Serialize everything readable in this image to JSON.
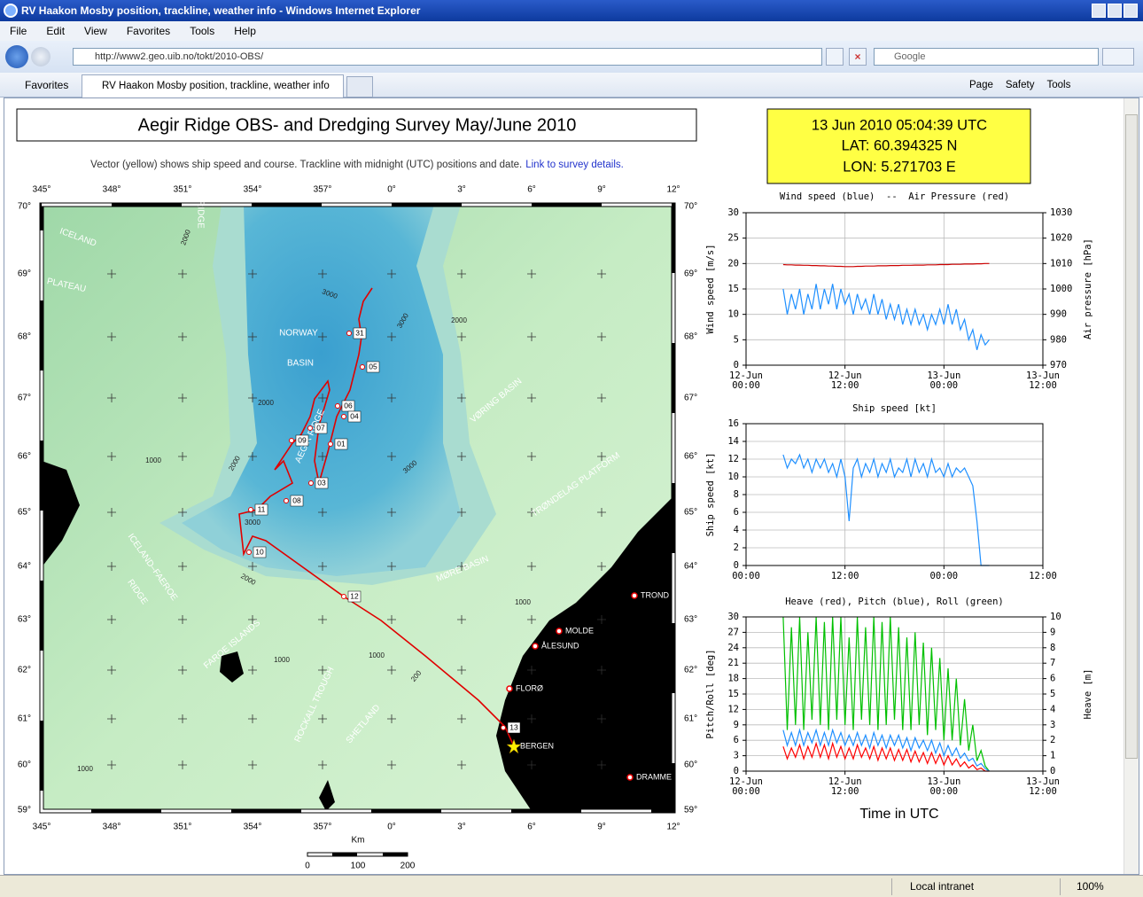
{
  "browser": {
    "window_title": "RV Haakon Mosby position, trackline, weather info - Windows Internet Explorer",
    "menu": [
      "File",
      "Edit",
      "View",
      "Favorites",
      "Tools",
      "Help"
    ],
    "address": "http://www2.geo.uib.no/tokt/2010-OBS/",
    "search": "Google",
    "favorites": "Favorites",
    "tab": "RV Haakon Mosby position, trackline, weather info",
    "commands": [
      "Page",
      "Safety",
      "Tools"
    ],
    "status_zone": "Local intranet",
    "zoom": "100%"
  },
  "page": {
    "title": "Aegir Ridge OBS- and Dredging Survey May/June 2010",
    "caption": "Vector (yellow) shows ship speed and course. Trackline with midnight (UTC) positions and date.",
    "link": "Link to survey details.",
    "position": {
      "time": "13 Jun 2010 05:04:39 UTC",
      "lat": "LAT: 60.394325 N",
      "lon": "LON: 5.271703 E"
    },
    "time_axis_caption": "Time in UTC"
  },
  "map": {
    "lon_labels": [
      "345°",
      "348°",
      "351°",
      "354°",
      "357°",
      "0°",
      "3°",
      "6°",
      "9°",
      "12°"
    ],
    "lat_labels": [
      "70°",
      "69°",
      "68°",
      "67°",
      "66°",
      "65°",
      "64°",
      "63°",
      "62°",
      "61°",
      "60°",
      "59°"
    ],
    "regions": [
      "ICELAND",
      "PLATEAU",
      "RIDGE",
      "NORWAY",
      "BASIN",
      "AEGIR RIDGE",
      "VØRING BASIN",
      "TRØNDELAG PLATFORM",
      "MØRE BASIN",
      "ICELAND–FAEROE",
      "RIDGE",
      "FAROE ISLANDS",
      "ROCKALL TROUGH",
      "SHETLAND"
    ],
    "stations": [
      "31",
      "05",
      "06",
      "04",
      "07",
      "01",
      "09",
      "03",
      "08",
      "11",
      "10",
      "12",
      "13"
    ],
    "cities": [
      "TROND",
      "MOLDE",
      "ÅLESUND",
      "FLORØ",
      "BERGEN",
      "DRAMME"
    ],
    "contours": [
      "2000",
      "2000",
      "3000",
      "3000",
      "2000",
      "3000",
      "1000",
      "2000",
      "1000",
      "3000",
      "2000",
      "1000",
      "200",
      "1000",
      "1000"
    ],
    "scale": {
      "unit": "Km",
      "ticks": [
        "0",
        "100",
        "200"
      ]
    }
  },
  "chart_data": [
    {
      "type": "line",
      "title": "Wind speed (blue)  --  Air Pressure (red)",
      "y_label": "Wind speed [m/s]",
      "y2_label": "Air pressure [hPa]",
      "x": [
        4.5,
        5,
        5.5,
        6,
        6.5,
        7,
        7.5,
        8,
        8.5,
        9,
        9.5,
        10,
        10.5,
        11,
        11.5,
        12,
        12.5,
        13,
        13.5,
        14,
        14.5,
        15,
        15.5,
        16,
        16.5,
        17,
        17.5,
        18,
        18.5,
        19,
        19.5,
        20,
        20.5,
        21,
        21.5,
        22,
        22.5,
        23,
        23.5,
        24,
        24.5,
        25,
        25.5,
        26,
        26.5,
        27,
        27.5,
        28,
        28.5,
        29,
        29.5
      ],
      "xlim": [
        0,
        36
      ],
      "xticks": [
        {
          "value": 0,
          "label": "00:00",
          "date": "12-Jun"
        },
        {
          "value": 12,
          "label": "12:00",
          "date": "12-Jun"
        },
        {
          "value": 24,
          "label": "00:00",
          "date": "13-Jun"
        },
        {
          "value": 36,
          "label": "12:00",
          "date": "13-Jun"
        }
      ],
      "ylim": [
        0,
        30
      ],
      "yticks": [
        0,
        5,
        10,
        15,
        20,
        25,
        30
      ],
      "y2lim": [
        970,
        1030
      ],
      "y2ticks": [
        970,
        980,
        990,
        1000,
        1010,
        1020,
        1030
      ],
      "grid": true,
      "series": [
        {
          "name": "Wind speed",
          "color": "#1e8fff",
          "values": [
            15,
            10,
            14,
            11,
            15,
            10,
            14,
            11,
            16,
            11,
            15,
            12,
            16,
            11,
            15,
            12,
            14,
            10,
            14,
            11,
            13,
            10,
            14,
            10,
            13,
            9,
            12,
            9,
            12,
            8,
            11,
            8,
            11,
            8,
            10,
            7,
            10,
            8,
            11,
            8,
            12,
            8,
            11,
            7,
            9,
            5,
            7,
            3,
            6,
            4,
            5
          ]
        },
        {
          "name": "Air Pressure",
          "color": "#cc0000",
          "axis": "y2",
          "values": [
            1009.6,
            1009.5,
            1009.5,
            1009.4,
            1009.4,
            1009.3,
            1009.3,
            1009.2,
            1009.2,
            1009.1,
            1009.1,
            1009,
            1009,
            1008.9,
            1008.9,
            1008.8,
            1008.8,
            1008.8,
            1008.9,
            1008.9,
            1009,
            1009,
            1009,
            1009.1,
            1009.1,
            1009.1,
            1009.2,
            1009.2,
            1009.2,
            1009.3,
            1009.3,
            1009.3,
            1009.4,
            1009.4,
            1009.4,
            1009.5,
            1009.5,
            1009.5,
            1009.6,
            1009.6,
            1009.6,
            1009.7,
            1009.7,
            1009.7,
            1009.8,
            1009.8,
            1009.8,
            1009.9,
            1009.9,
            1010,
            1010
          ]
        }
      ]
    },
    {
      "type": "line",
      "title": "Ship speed [kt]",
      "y_label": "Ship speed [kt]",
      "x": [
        4.5,
        5,
        5.5,
        6,
        6.5,
        7,
        7.5,
        8,
        8.5,
        9,
        9.5,
        10,
        10.5,
        11,
        11.5,
        12,
        12.5,
        13,
        13.5,
        14,
        14.5,
        15,
        15.5,
        16,
        16.5,
        17,
        17.5,
        18,
        18.5,
        19,
        19.5,
        20,
        20.5,
        21,
        21.5,
        22,
        22.5,
        23,
        23.5,
        24,
        24.5,
        25,
        25.5,
        26,
        26.5,
        27,
        27.5,
        28,
        28.5,
        29,
        29.5
      ],
      "xlim": [
        0,
        36
      ],
      "xticks": [
        {
          "value": 0,
          "label": "00:00"
        },
        {
          "value": 12,
          "label": "12:00"
        },
        {
          "value": 24,
          "label": "00:00"
        },
        {
          "value": 36,
          "label": "12:00"
        }
      ],
      "ylim": [
        0,
        16
      ],
      "yticks": [
        0,
        2,
        4,
        6,
        8,
        10,
        12,
        14,
        16
      ],
      "grid": true,
      "series": [
        {
          "name": "Ship speed",
          "color": "#1e8fff",
          "values": [
            12.5,
            11,
            12,
            11.5,
            12.5,
            11,
            12,
            10.5,
            12,
            11,
            12,
            10.5,
            11.5,
            10,
            12,
            10,
            5,
            11,
            12,
            10,
            11.5,
            10.5,
            12,
            10,
            11.5,
            10.5,
            12,
            10,
            11,
            10.5,
            12,
            10,
            12,
            10.5,
            11.5,
            10,
            12,
            10.5,
            11,
            10,
            11.5,
            10,
            11,
            10.5,
            11,
            10,
            9,
            5,
            0,
            0,
            0
          ]
        }
      ]
    },
    {
      "type": "line",
      "title": "Heave (red), Pitch (blue), Roll (green)",
      "y_label": "Pitch/Roll [deg]",
      "y2_label": "Heave [m]",
      "x": [
        4.5,
        5,
        5.5,
        6,
        6.5,
        7,
        7.5,
        8,
        8.5,
        9,
        9.5,
        10,
        10.5,
        11,
        11.5,
        12,
        12.5,
        13,
        13.5,
        14,
        14.5,
        15,
        15.5,
        16,
        16.5,
        17,
        17.5,
        18,
        18.5,
        19,
        19.5,
        20,
        20.5,
        21,
        21.5,
        22,
        22.5,
        23,
        23.5,
        24,
        24.5,
        25,
        25.5,
        26,
        26.5,
        27,
        27.5,
        28,
        28.5,
        29,
        29.5
      ],
      "xlim": [
        0,
        36
      ],
      "xticks": [
        {
          "value": 0,
          "label": "00:00",
          "date": "12-Jun"
        },
        {
          "value": 12,
          "label": "12:00",
          "date": "12-Jun"
        },
        {
          "value": 24,
          "label": "00:00",
          "date": "13-Jun"
        },
        {
          "value": 36,
          "label": "12:00",
          "date": "13-Jun"
        }
      ],
      "ylim": [
        0,
        30
      ],
      "yticks": [
        0,
        3,
        6,
        9,
        12,
        15,
        18,
        21,
        24,
        27,
        30
      ],
      "y2lim": [
        0,
        10
      ],
      "y2ticks": [
        0,
        1,
        2,
        3,
        4,
        5,
        6,
        7,
        8,
        9,
        10
      ],
      "grid": true,
      "series": [
        {
          "name": "Roll",
          "color": "#00c000",
          "values": [
            30,
            8,
            28,
            9,
            30,
            8,
            27,
            10,
            30,
            9,
            29,
            8,
            30,
            10,
            30,
            9,
            26,
            8,
            30,
            10,
            28,
            9,
            30,
            8,
            29,
            9,
            30,
            10,
            28,
            8,
            26,
            8,
            27,
            9,
            25,
            7,
            24,
            8,
            22,
            6,
            20,
            6,
            18,
            5,
            14,
            4,
            9,
            2,
            4,
            1,
            0
          ]
        },
        {
          "name": "Pitch",
          "color": "#1e8fff",
          "values": [
            8,
            5,
            7.5,
            5,
            8,
            5,
            7.5,
            5.5,
            8,
            5,
            7.5,
            5,
            8,
            5.5,
            7.5,
            5,
            7,
            5,
            7.5,
            5,
            7,
            4.5,
            7.5,
            5,
            7,
            4.5,
            7,
            5,
            7,
            4.5,
            6.5,
            4,
            6.5,
            4.5,
            6,
            4,
            6,
            3.5,
            5.5,
            3,
            5,
            3,
            4.5,
            2.5,
            3.5,
            2,
            2.5,
            1,
            1.5,
            0.5,
            0
          ]
        },
        {
          "name": "Heave",
          "color": "#ff0000",
          "axis": "y2",
          "values": [
            1.6,
            0.8,
            1.5,
            0.9,
            1.7,
            0.8,
            1.6,
            0.9,
            1.8,
            0.9,
            1.7,
            0.8,
            1.8,
            0.9,
            1.6,
            0.8,
            1.5,
            0.8,
            1.7,
            0.9,
            1.5,
            0.8,
            1.6,
            0.7,
            1.5,
            0.8,
            1.5,
            0.7,
            1.4,
            0.7,
            1.4,
            0.6,
            1.3,
            0.6,
            1.2,
            0.5,
            1.2,
            0.5,
            1.1,
            0.4,
            1,
            0.4,
            0.8,
            0.3,
            0.6,
            0.2,
            0.4,
            0.1,
            0.2,
            0,
            0
          ]
        }
      ]
    }
  ]
}
